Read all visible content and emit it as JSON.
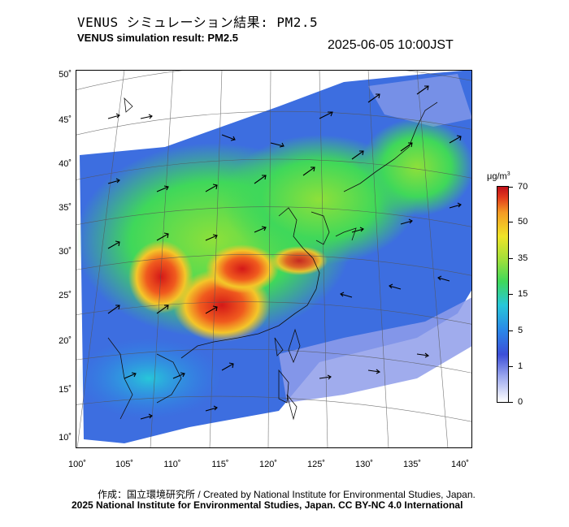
{
  "header": {
    "title_ja": "VENUS シミュレーション結果: PM2.5",
    "title_en": "VENUS simulation result: PM2.5",
    "timestamp": "2025-06-05 10:00JST"
  },
  "map": {
    "lat_labels": [
      "50˚",
      "45˚",
      "40˚",
      "35˚",
      "30˚",
      "25˚",
      "20˚",
      "15˚",
      "10˚"
    ],
    "lon_labels": [
      "100˚",
      "105˚",
      "110˚",
      "115˚",
      "120˚",
      "125˚",
      "130˚",
      "135˚",
      "140˚"
    ],
    "variable": "PM2.5 concentration with wind vectors"
  },
  "colorbar": {
    "unit": "μg/m",
    "unit_sup": "3",
    "ticks": [
      "70",
      "50",
      "35",
      "15",
      "5",
      "1",
      "0"
    ],
    "colors": [
      "#ffffff",
      "#9aa6ee",
      "#3d4fd8",
      "#2a86e8",
      "#27c7d9",
      "#3fd85a",
      "#9fe03a",
      "#f0e428",
      "#f49b24",
      "#e23a1c",
      "#c0101a"
    ]
  },
  "footer": {
    "credit_line_1": "作成：国立環境研究所 / Created by National Institute for Environmental Studies, Japan.",
    "credit_line_2": "2025 National Institute for Environmental Studies, Japan. CC BY-NC 4.0 International"
  }
}
